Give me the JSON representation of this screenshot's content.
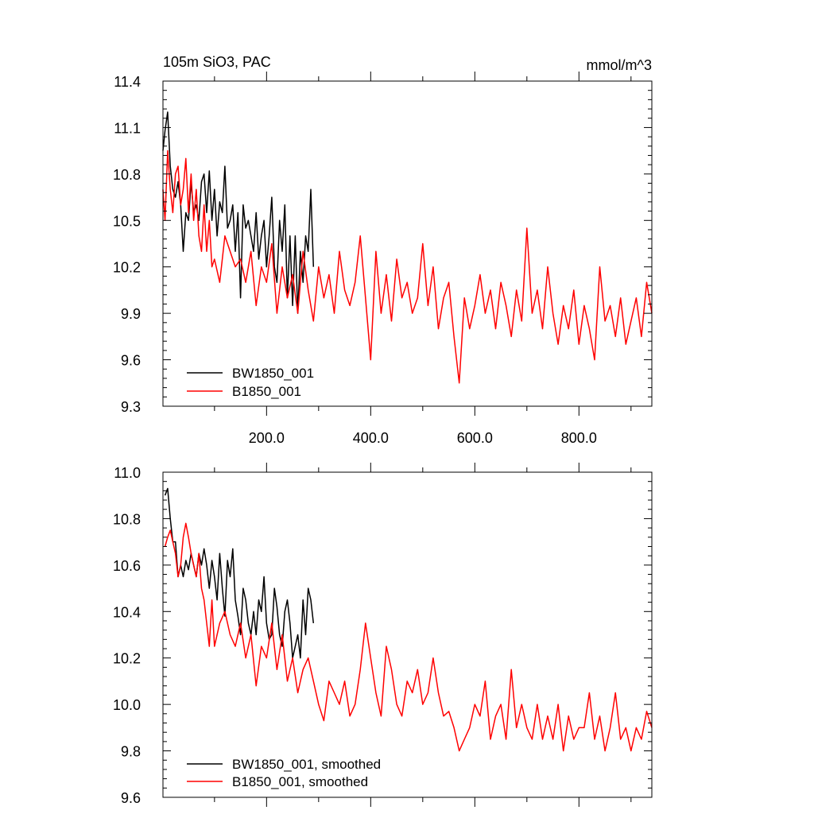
{
  "chart_data": [
    {
      "type": "line",
      "title": "105m SiO3, PAC",
      "units": "mmol/m^3",
      "xlabel": "",
      "ylabel": "",
      "xlim": [
        1,
        940
      ],
      "ylim": [
        9.3,
        11.4
      ],
      "xticks": [
        200,
        400,
        600,
        800
      ],
      "xtick_labels": [
        "200.0",
        "400.0",
        "600.0",
        "800.0"
      ],
      "yticks": [
        9.3,
        9.6,
        9.9,
        10.2,
        10.5,
        10.8,
        11.1,
        11.4
      ],
      "ytick_labels": [
        "9.3",
        "9.6",
        "9.9",
        "10.2",
        "10.5",
        "10.8",
        "11.1",
        "11.4"
      ],
      "grid": false,
      "legend_position": "bottom-left",
      "series": [
        {
          "name": "BW1850_001",
          "color": "#000000",
          "x": [
            1,
            5,
            10,
            15,
            20,
            25,
            30,
            35,
            40,
            45,
            50,
            55,
            60,
            65,
            70,
            75,
            80,
            85,
            90,
            95,
            100,
            105,
            110,
            115,
            120,
            125,
            130,
            135,
            140,
            145,
            150,
            155,
            160,
            165,
            170,
            175,
            180,
            185,
            190,
            195,
            200,
            205,
            210,
            215,
            220,
            225,
            230,
            235,
            240,
            245,
            250,
            255,
            260,
            265,
            270,
            275,
            280,
            285,
            290
          ],
          "values": [
            10.95,
            11.08,
            11.2,
            10.85,
            10.7,
            10.65,
            10.75,
            10.6,
            10.3,
            10.55,
            10.5,
            10.75,
            10.55,
            10.6,
            10.5,
            10.75,
            10.8,
            10.55,
            10.82,
            10.5,
            10.7,
            10.4,
            10.62,
            10.55,
            10.85,
            10.45,
            10.5,
            10.6,
            10.3,
            10.55,
            10.0,
            10.6,
            10.45,
            10.5,
            10.4,
            10.3,
            10.55,
            10.25,
            10.4,
            10.5,
            10.2,
            10.4,
            10.65,
            10.2,
            10.1,
            10.5,
            10.3,
            10.6,
            10.0,
            10.4,
            9.95,
            10.4,
            9.9,
            10.3,
            10.1,
            10.4,
            10.3,
            10.7,
            10.2
          ]
        },
        {
          "name": "B1850_001",
          "color": "#ff0000",
          "x": [
            1,
            5,
            10,
            15,
            20,
            25,
            30,
            35,
            40,
            45,
            50,
            55,
            60,
            65,
            70,
            75,
            80,
            85,
            90,
            95,
            100,
            110,
            120,
            130,
            140,
            150,
            160,
            170,
            180,
            190,
            200,
            210,
            220,
            230,
            240,
            250,
            260,
            270,
            280,
            290,
            300,
            310,
            320,
            330,
            340,
            350,
            360,
            370,
            380,
            390,
            400,
            410,
            420,
            430,
            440,
            450,
            460,
            470,
            480,
            490,
            500,
            510,
            520,
            530,
            540,
            550,
            560,
            570,
            580,
            590,
            600,
            610,
            620,
            630,
            640,
            650,
            660,
            670,
            680,
            690,
            700,
            710,
            720,
            730,
            740,
            750,
            760,
            770,
            780,
            790,
            800,
            810,
            820,
            830,
            840,
            850,
            860,
            870,
            880,
            890,
            900,
            910,
            920,
            930,
            940
          ],
          "values": [
            10.7,
            10.5,
            10.95,
            10.7,
            10.55,
            10.8,
            10.85,
            10.6,
            10.7,
            10.9,
            10.55,
            10.8,
            10.5,
            10.7,
            10.4,
            10.3,
            10.6,
            10.3,
            10.5,
            10.2,
            10.25,
            10.1,
            10.4,
            10.3,
            10.2,
            10.25,
            10.1,
            10.3,
            9.95,
            10.2,
            10.1,
            10.35,
            9.9,
            10.2,
            10.0,
            10.15,
            9.9,
            10.3,
            10.05,
            9.85,
            10.2,
            10.0,
            10.15,
            9.9,
            10.3,
            10.05,
            9.95,
            10.1,
            10.4,
            10.0,
            9.6,
            10.3,
            9.9,
            10.15,
            9.85,
            10.25,
            10.0,
            10.1,
            9.9,
            10.0,
            10.35,
            9.95,
            10.2,
            9.8,
            10.0,
            10.1,
            9.75,
            9.45,
            10.0,
            9.8,
            9.95,
            10.15,
            9.9,
            10.05,
            9.8,
            10.1,
            9.95,
            9.75,
            10.05,
            9.85,
            10.45,
            9.9,
            10.05,
            9.8,
            10.2,
            9.9,
            9.7,
            9.95,
            9.8,
            10.05,
            9.7,
            9.95,
            9.8,
            9.6,
            10.2,
            9.85,
            9.95,
            9.75,
            10.0,
            9.7,
            9.85,
            10.0,
            9.75,
            10.1,
            9.9
          ]
        }
      ]
    },
    {
      "type": "line",
      "title": "",
      "xlabel": "",
      "ylabel": "",
      "xlim": [
        1,
        940
      ],
      "ylim": [
        9.6,
        11.0
      ],
      "xticks": [
        200,
        400,
        600,
        800
      ],
      "xtick_labels": [],
      "yticks": [
        9.6,
        9.8,
        10.0,
        10.2,
        10.4,
        10.6,
        10.8,
        11.0
      ],
      "ytick_labels": [
        "9.6",
        "9.8",
        "10.0",
        "10.2",
        "10.4",
        "10.6",
        "10.8",
        "11.0"
      ],
      "grid": false,
      "legend_position": "bottom-left",
      "series": [
        {
          "name": "BW1850_001, smoothed",
          "color": "#000000",
          "x": [
            5,
            10,
            15,
            20,
            25,
            30,
            35,
            40,
            45,
            50,
            55,
            60,
            65,
            70,
            75,
            80,
            85,
            90,
            95,
            100,
            105,
            110,
            115,
            120,
            125,
            130,
            135,
            140,
            145,
            150,
            155,
            160,
            165,
            170,
            175,
            180,
            185,
            190,
            195,
            200,
            205,
            210,
            215,
            220,
            225,
            230,
            235,
            240,
            245,
            250,
            255,
            260,
            265,
            270,
            275,
            280,
            285,
            290
          ],
          "values": [
            10.9,
            10.93,
            10.8,
            10.7,
            10.7,
            10.55,
            10.6,
            10.55,
            10.62,
            10.58,
            10.65,
            10.6,
            10.55,
            10.65,
            10.6,
            10.67,
            10.6,
            10.5,
            10.62,
            10.55,
            10.45,
            10.65,
            10.5,
            10.38,
            10.62,
            10.55,
            10.67,
            10.45,
            10.38,
            10.3,
            10.5,
            10.45,
            10.35,
            10.3,
            10.4,
            10.3,
            10.45,
            10.4,
            10.55,
            10.35,
            10.28,
            10.3,
            10.5,
            10.42,
            10.3,
            10.25,
            10.4,
            10.45,
            10.35,
            10.2,
            10.25,
            10.3,
            10.2,
            10.45,
            10.3,
            10.5,
            10.45,
            10.35
          ]
        },
        {
          "name": "B1850_001, smoothed",
          "color": "#ff0000",
          "x": [
            5,
            10,
            15,
            20,
            25,
            30,
            35,
            40,
            45,
            50,
            55,
            60,
            65,
            70,
            75,
            80,
            85,
            90,
            95,
            100,
            110,
            120,
            130,
            140,
            150,
            160,
            170,
            180,
            190,
            200,
            210,
            220,
            230,
            240,
            250,
            260,
            270,
            280,
            290,
            300,
            310,
            320,
            330,
            340,
            350,
            360,
            370,
            380,
            390,
            400,
            410,
            420,
            430,
            440,
            450,
            460,
            470,
            480,
            490,
            500,
            510,
            520,
            530,
            540,
            550,
            560,
            570,
            580,
            590,
            600,
            610,
            620,
            630,
            640,
            650,
            660,
            670,
            680,
            690,
            700,
            710,
            720,
            730,
            740,
            750,
            760,
            770,
            780,
            790,
            800,
            810,
            820,
            830,
            840,
            850,
            860,
            870,
            880,
            890,
            900,
            910,
            920,
            930,
            940
          ],
          "values": [
            10.68,
            10.72,
            10.75,
            10.7,
            10.65,
            10.55,
            10.6,
            10.72,
            10.78,
            10.72,
            10.65,
            10.6,
            10.55,
            10.65,
            10.5,
            10.45,
            10.35,
            10.25,
            10.45,
            10.25,
            10.35,
            10.4,
            10.3,
            10.25,
            10.35,
            10.2,
            10.3,
            10.08,
            10.25,
            10.2,
            10.35,
            10.15,
            10.3,
            10.1,
            10.2,
            10.05,
            10.15,
            10.2,
            10.1,
            10.0,
            9.93,
            10.1,
            10.05,
            10.0,
            10.1,
            9.95,
            10.0,
            10.15,
            10.35,
            10.2,
            10.05,
            9.95,
            10.25,
            10.15,
            10.0,
            9.95,
            10.1,
            10.05,
            10.15,
            10.0,
            10.05,
            10.2,
            10.05,
            9.95,
            9.97,
            9.9,
            9.8,
            9.85,
            9.9,
            10.0,
            9.95,
            10.1,
            9.85,
            9.95,
            10.0,
            9.85,
            10.15,
            9.9,
            10.0,
            9.9,
            9.85,
            10.0,
            9.85,
            9.95,
            9.85,
            10.0,
            9.8,
            9.95,
            9.85,
            9.9,
            9.9,
            10.05,
            9.85,
            9.95,
            9.8,
            9.9,
            10.05,
            9.85,
            9.9,
            9.8,
            9.9,
            9.85,
            9.97,
            9.9
          ]
        }
      ]
    }
  ]
}
